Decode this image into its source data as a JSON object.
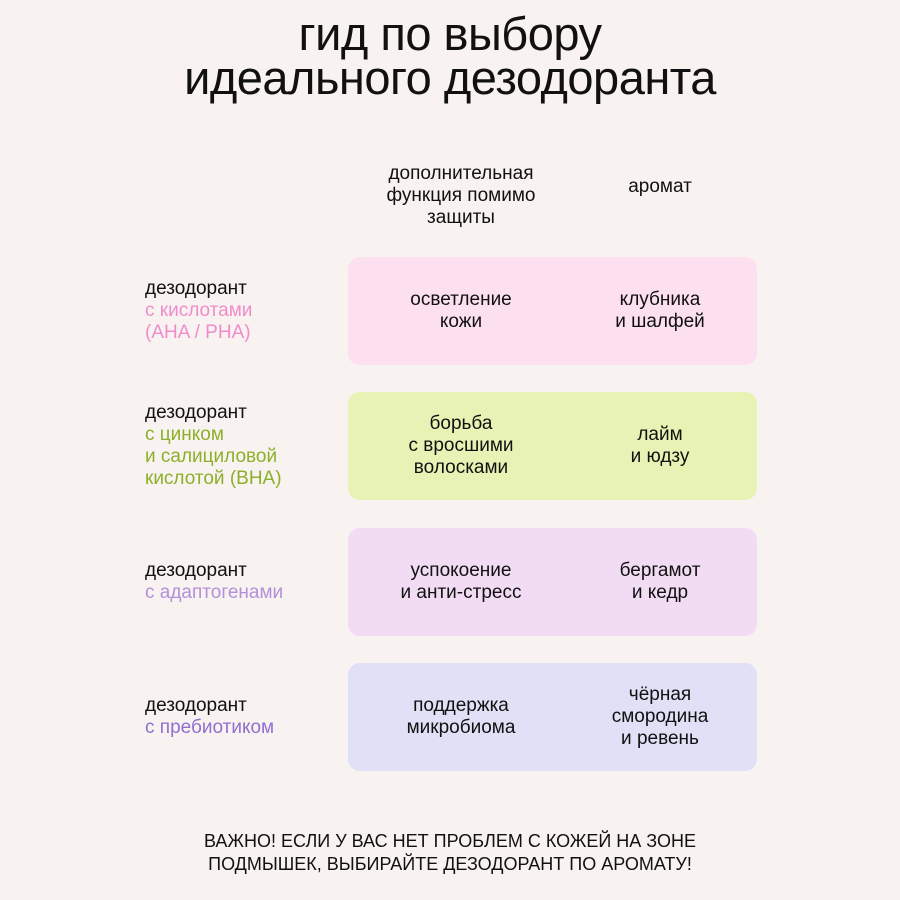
{
  "title": {
    "line1": "гид по выбору",
    "line2": "идеального дезодоранта"
  },
  "headers": {
    "function": "дополнительная\nфункция помимо\nзащиты",
    "aroma": "аромат"
  },
  "rows": [
    {
      "label_main": "дезодорант",
      "label_accent": "с кислотами\n(AHA / PHA)",
      "accent_color": "#f08ccc",
      "box_color": "#fde0ef",
      "function": "осветление\nкожи",
      "aroma": "клубника\nи шалфей"
    },
    {
      "label_main": "дезодорант",
      "label_accent": "с цинком\nи салициловой\nкислотой (BHA)",
      "accent_color": "#8db02a",
      "box_color": "#e8f2b4",
      "function": "борьба\nс вросшими\nволосками",
      "aroma": "лайм\nи юдзу"
    },
    {
      "label_main": "дезодорант",
      "label_accent": "с адаптогенами",
      "accent_color": "#b490dc",
      "box_color": "#f2dcf4",
      "function": "успокоение\nи анти-стресс",
      "aroma": "бергамот\nи кедр"
    },
    {
      "label_main": "дезодорант",
      "label_accent": "с пребиотиком",
      "accent_color": "#9070d0",
      "box_color": "#e0e0f6",
      "function": "поддержка\nмикробиома",
      "aroma": "чёрная\nсмородина\nи ревень"
    }
  ],
  "note": {
    "line1": "Важно! Если у вас нет проблем с кожей на зоне",
    "line2": "подмышек, выбирайте дезодорант по аромату!"
  }
}
